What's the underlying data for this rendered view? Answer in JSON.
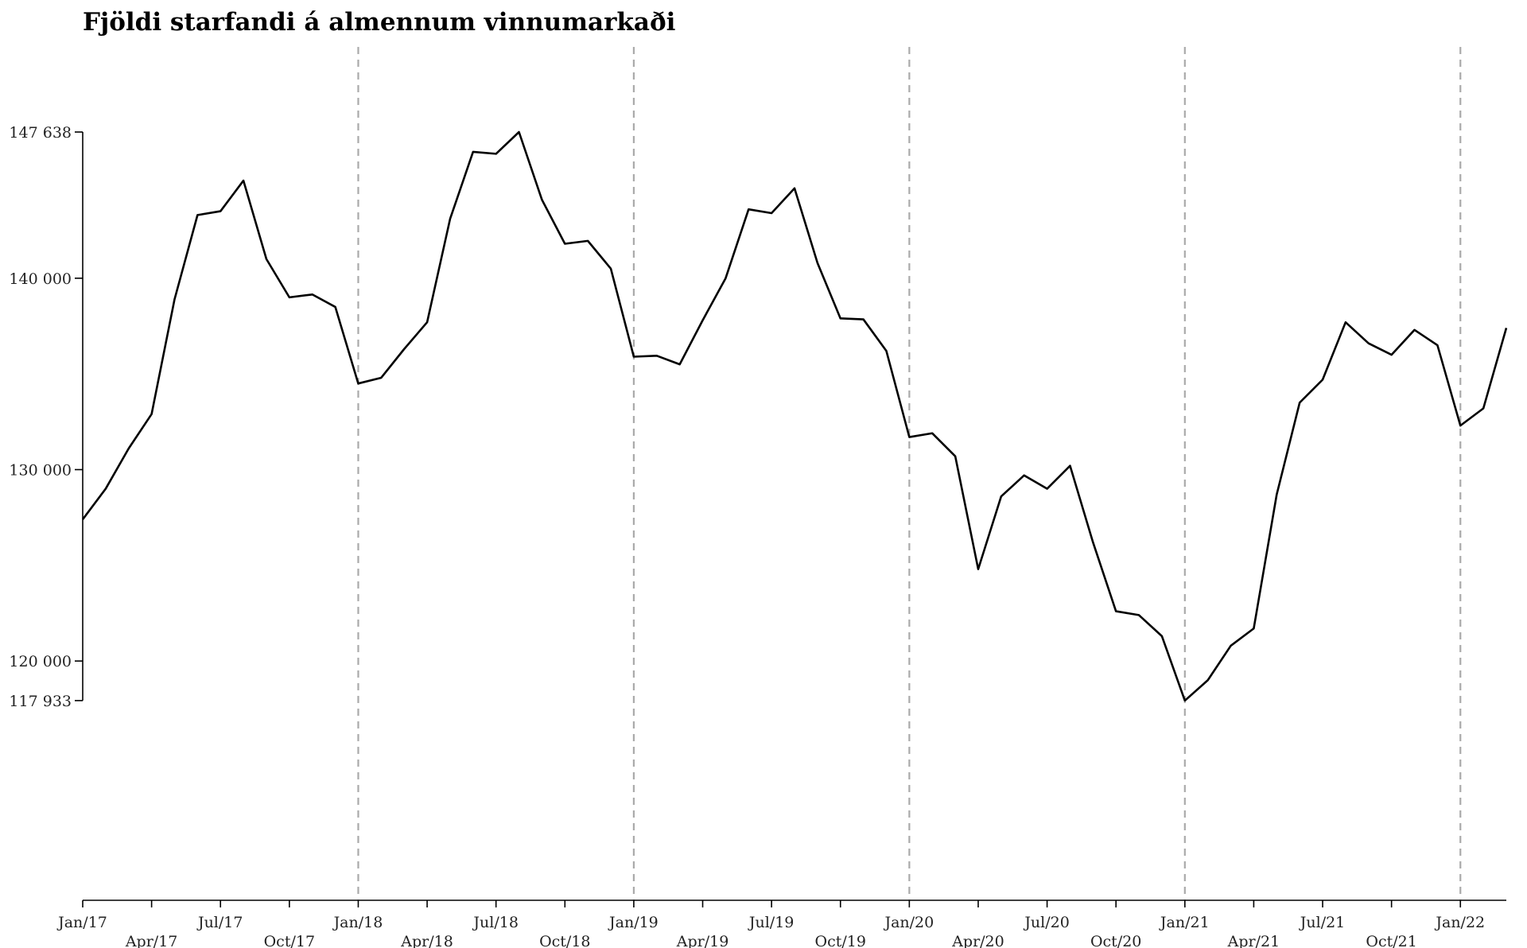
{
  "chart_data": {
    "type": "line",
    "title": "Fjöldi starfandi á almennum vinnumarkaði",
    "xlabel": "",
    "ylabel": "",
    "ylim": [
      107500,
      147638
    ],
    "y_ticks": [
      {
        "value": 147638,
        "label": "147 638"
      },
      {
        "value": 140000,
        "label": "140 000"
      },
      {
        "value": 130000,
        "label": "130 000"
      },
      {
        "value": 120000,
        "label": "120 000"
      },
      {
        "value": 117933,
        "label": "117 933"
      }
    ],
    "x_ticks": [
      {
        "month_index": 0,
        "label": "Jan/17"
      },
      {
        "month_index": 3,
        "label": "Apr/17"
      },
      {
        "month_index": 6,
        "label": "Jul/17"
      },
      {
        "month_index": 9,
        "label": "Oct/17"
      },
      {
        "month_index": 12,
        "label": "Jan/18"
      },
      {
        "month_index": 15,
        "label": "Apr/18"
      },
      {
        "month_index": 18,
        "label": "Jul/18"
      },
      {
        "month_index": 21,
        "label": "Oct/18"
      },
      {
        "month_index": 24,
        "label": "Jan/19"
      },
      {
        "month_index": 27,
        "label": "Apr/19"
      },
      {
        "month_index": 30,
        "label": "Jul/19"
      },
      {
        "month_index": 33,
        "label": "Oct/19"
      },
      {
        "month_index": 36,
        "label": "Jan/20"
      },
      {
        "month_index": 39,
        "label": "Apr/20"
      },
      {
        "month_index": 42,
        "label": "Jul/20"
      },
      {
        "month_index": 45,
        "label": "Oct/20"
      },
      {
        "month_index": 48,
        "label": "Jan/21"
      },
      {
        "month_index": 51,
        "label": "Apr/21"
      },
      {
        "month_index": 54,
        "label": "Jul/21"
      },
      {
        "month_index": 57,
        "label": "Oct/21"
      },
      {
        "month_index": 60,
        "label": "Jan/22"
      }
    ],
    "year_lines_at": [
      12,
      24,
      36,
      48,
      60
    ],
    "grid": false,
    "x": [
      "Jan/17",
      "Feb/17",
      "Mar/17",
      "Apr/17",
      "May/17",
      "Jun/17",
      "Jul/17",
      "Aug/17",
      "Sep/17",
      "Oct/17",
      "Nov/17",
      "Dec/17",
      "Jan/18",
      "Feb/18",
      "Mar/18",
      "Apr/18",
      "May/18",
      "Jun/18",
      "Jul/18",
      "Aug/18",
      "Sep/18",
      "Oct/18",
      "Nov/18",
      "Dec/18",
      "Jan/19",
      "Feb/19",
      "Mar/19",
      "Apr/19",
      "May/19",
      "Jun/19",
      "Jul/19",
      "Aug/19",
      "Sep/19",
      "Oct/19",
      "Nov/19",
      "Dec/19",
      "Jan/20",
      "Feb/20",
      "Mar/20",
      "Apr/20",
      "May/20",
      "Jun/20",
      "Jul/20",
      "Aug/20",
      "Sep/20",
      "Oct/20",
      "Nov/20",
      "Dec/20",
      "Jan/21",
      "Feb/21",
      "Mar/21",
      "Apr/21",
      "May/21",
      "Jun/21",
      "Jul/21",
      "Aug/21",
      "Sep/21",
      "Oct/21",
      "Nov/21",
      "Dec/21",
      "Jan/22",
      "Feb/22",
      "Mar/22"
    ],
    "series": [
      {
        "values": [
          127400,
          129000,
          131100,
          132900,
          138900,
          143300,
          143500,
          145100,
          141000,
          139000,
          139150,
          138500,
          134500,
          134800,
          136300,
          137700,
          143100,
          146600,
          146500,
          147638,
          144100,
          141800,
          141950,
          140500,
          135900,
          135950,
          135500,
          137800,
          140000,
          143600,
          143400,
          144700,
          140800,
          137900,
          137850,
          136200,
          131700,
          131900,
          130700,
          124800,
          128600,
          129700,
          129000,
          130200,
          126200,
          122600,
          122400,
          121300,
          117933,
          119000,
          120800,
          121700,
          128700,
          133500,
          134700,
          137700,
          136600,
          136000,
          137300,
          136500,
          132300,
          133200,
          137400
        ]
      }
    ]
  }
}
